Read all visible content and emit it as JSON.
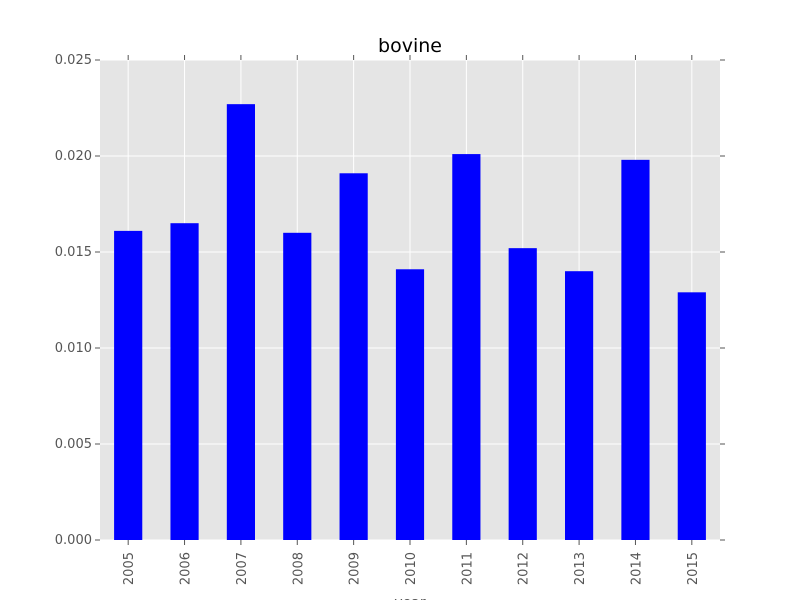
{
  "chart_data": {
    "type": "bar",
    "title": "bovine",
    "xlabel": "year",
    "ylabel": "",
    "categories": [
      "2005",
      "2006",
      "2007",
      "2008",
      "2009",
      "2010",
      "2011",
      "2012",
      "2013",
      "2014",
      "2015"
    ],
    "values": [
      0.0161,
      0.0165,
      0.0227,
      0.016,
      0.0191,
      0.0141,
      0.0201,
      0.0152,
      0.014,
      0.0198,
      0.0129
    ],
    "ylim": [
      0,
      0.025
    ],
    "yticks": [
      0.0,
      0.005,
      0.01,
      0.015,
      0.02,
      0.025
    ],
    "ytick_labels": [
      "0.000",
      "0.005",
      "0.010",
      "0.015",
      "0.020",
      "0.025"
    ],
    "grid": true,
    "legend": "none",
    "colors": {
      "bar": "#0000ff",
      "plot_background": "#e5e5e5",
      "grid": "#ffffff",
      "tick": "#555555"
    }
  }
}
